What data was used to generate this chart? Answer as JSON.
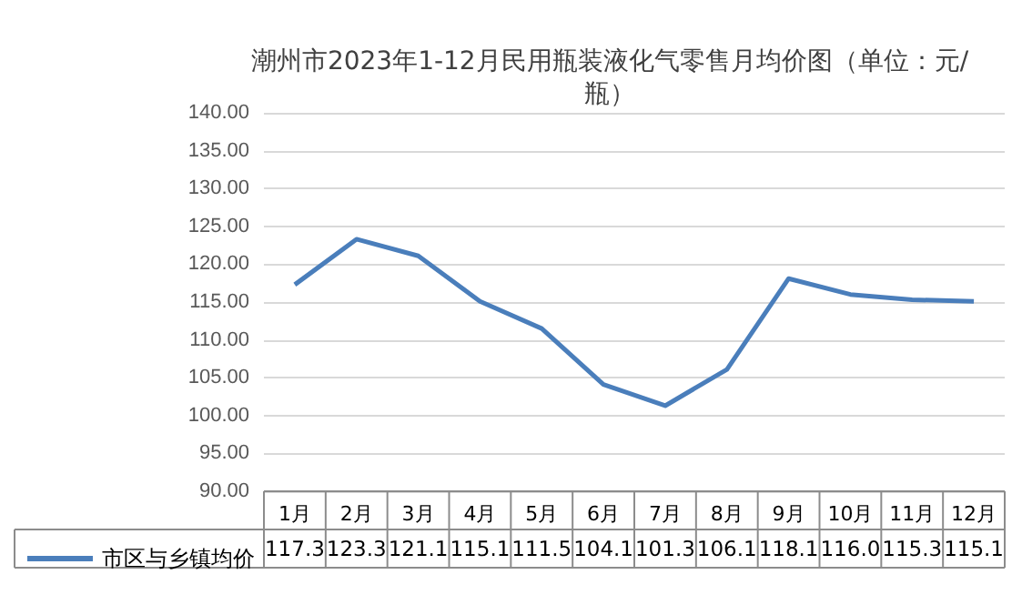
{
  "chart_data": {
    "type": "line",
    "title": "潮州市2023年1-12月民用瓶装液化气零售月均价图（单位：元/瓶）",
    "categories": [
      "1月",
      "2月",
      "3月",
      "4月",
      "5月",
      "6月",
      "7月",
      "8月",
      "9月",
      "10月",
      "11月",
      "12月"
    ],
    "series": [
      {
        "name": "市区与乡镇均价",
        "color": "#4a7ebb",
        "values": [
          117.3,
          123.3,
          121.1,
          115.1,
          111.5,
          104.1,
          101.3,
          106.1,
          118.1,
          116.0,
          115.3,
          115.1
        ],
        "value_labels": [
          "117.3",
          "123.3",
          "121.1",
          "115.1",
          "111.5",
          "104.1",
          "101.3",
          "106.1",
          "118.1",
          "116.0",
          "115.3",
          "115.1"
        ]
      }
    ],
    "ylim": [
      90,
      140
    ],
    "yticks": [
      {
        "value": 90,
        "label": "90.00"
      },
      {
        "value": 95,
        "label": "95.00"
      },
      {
        "value": 100,
        "label": "100.00"
      },
      {
        "value": 105,
        "label": "105.00"
      },
      {
        "value": 110,
        "label": "110.00"
      },
      {
        "value": 115,
        "label": "115.00"
      },
      {
        "value": 120,
        "label": "120.00"
      },
      {
        "value": 125,
        "label": "125.00"
      },
      {
        "value": 130,
        "label": "130.00"
      },
      {
        "value": 135,
        "label": "135.00"
      },
      {
        "value": 140,
        "label": "140.00"
      }
    ],
    "grid": "y",
    "legend": "bottom",
    "marker": "none",
    "line_style": "solid"
  }
}
